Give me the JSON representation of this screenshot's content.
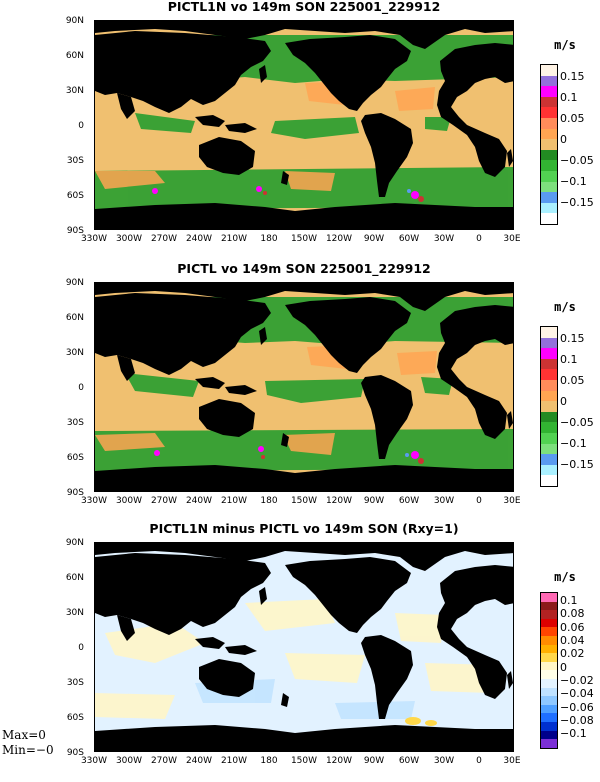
{
  "panels": [
    {
      "title": "PICTL1N vo 149m SON 225001_229912",
      "colorbar_unit": "m/s",
      "colorbar_labels": [
        "0.15",
        "0.1",
        "0.05",
        "0",
        "−0.05",
        "−0.1",
        "−0.15"
      ],
      "colorbar_colors": [
        "#fff4e6",
        "#9370db",
        "#ff00ff",
        "#cc3333",
        "#ff3333",
        "#ff8c5a",
        "#ffa552",
        "#f0c070",
        "#228b22",
        "#32b432",
        "#52d252",
        "#7de07d",
        "#5a9bf0",
        "#aaf0ff",
        "#ffffff"
      ]
    },
    {
      "title": "PICTL vo 149m SON 225001_229912",
      "colorbar_unit": "m/s",
      "colorbar_labels": [
        "0.15",
        "0.1",
        "0.05",
        "0",
        "−0.05",
        "−0.1",
        "−0.15"
      ],
      "colorbar_colors": [
        "#fff4e6",
        "#9370db",
        "#ff00ff",
        "#cc3333",
        "#ff3333",
        "#ff8c5a",
        "#ffa552",
        "#f0c070",
        "#228b22",
        "#32b432",
        "#52d252",
        "#7de07d",
        "#5a9bf0",
        "#aaf0ff",
        "#ffffff"
      ]
    },
    {
      "title": "PICTL1N minus PICTL vo 149m SON (Rxy=1)",
      "colorbar_unit": "m/s",
      "colorbar_labels": [
        "0.1",
        "0.08",
        "0.06",
        "0.04",
        "0.02",
        "0",
        "−0.02",
        "−0.04",
        "−0.06",
        "−0.08",
        "−0.1"
      ],
      "colorbar_colors": [
        "#ff69b4",
        "#8b1a1a",
        "#b22222",
        "#dd0000",
        "#ff4500",
        "#ff8c00",
        "#ffb000",
        "#ffd84a",
        "#fff6c8",
        "#ffffe8",
        "#e4f4ff",
        "#bfe2ff",
        "#8ec8ff",
        "#4fa0ff",
        "#1f6fff",
        "#0030d0",
        "#00008b",
        "#7b2fd6"
      ],
      "stats": {
        "max": "Max=0",
        "min": "Min=−0"
      }
    }
  ],
  "lat_labels": [
    "90N",
    "60N",
    "30N",
    "0",
    "30S",
    "60S",
    "90S"
  ],
  "lon_labels": [
    "330W",
    "300W",
    "270W",
    "240W",
    "210W",
    "180",
    "150W",
    "120W",
    "90W",
    "60W",
    "30W",
    "0",
    "30E"
  ],
  "colors": {
    "land": "#000000",
    "ocean_positive": "#f0c070",
    "ocean_negative": "#32a032",
    "diff_ocean": "#e2f2ff"
  }
}
